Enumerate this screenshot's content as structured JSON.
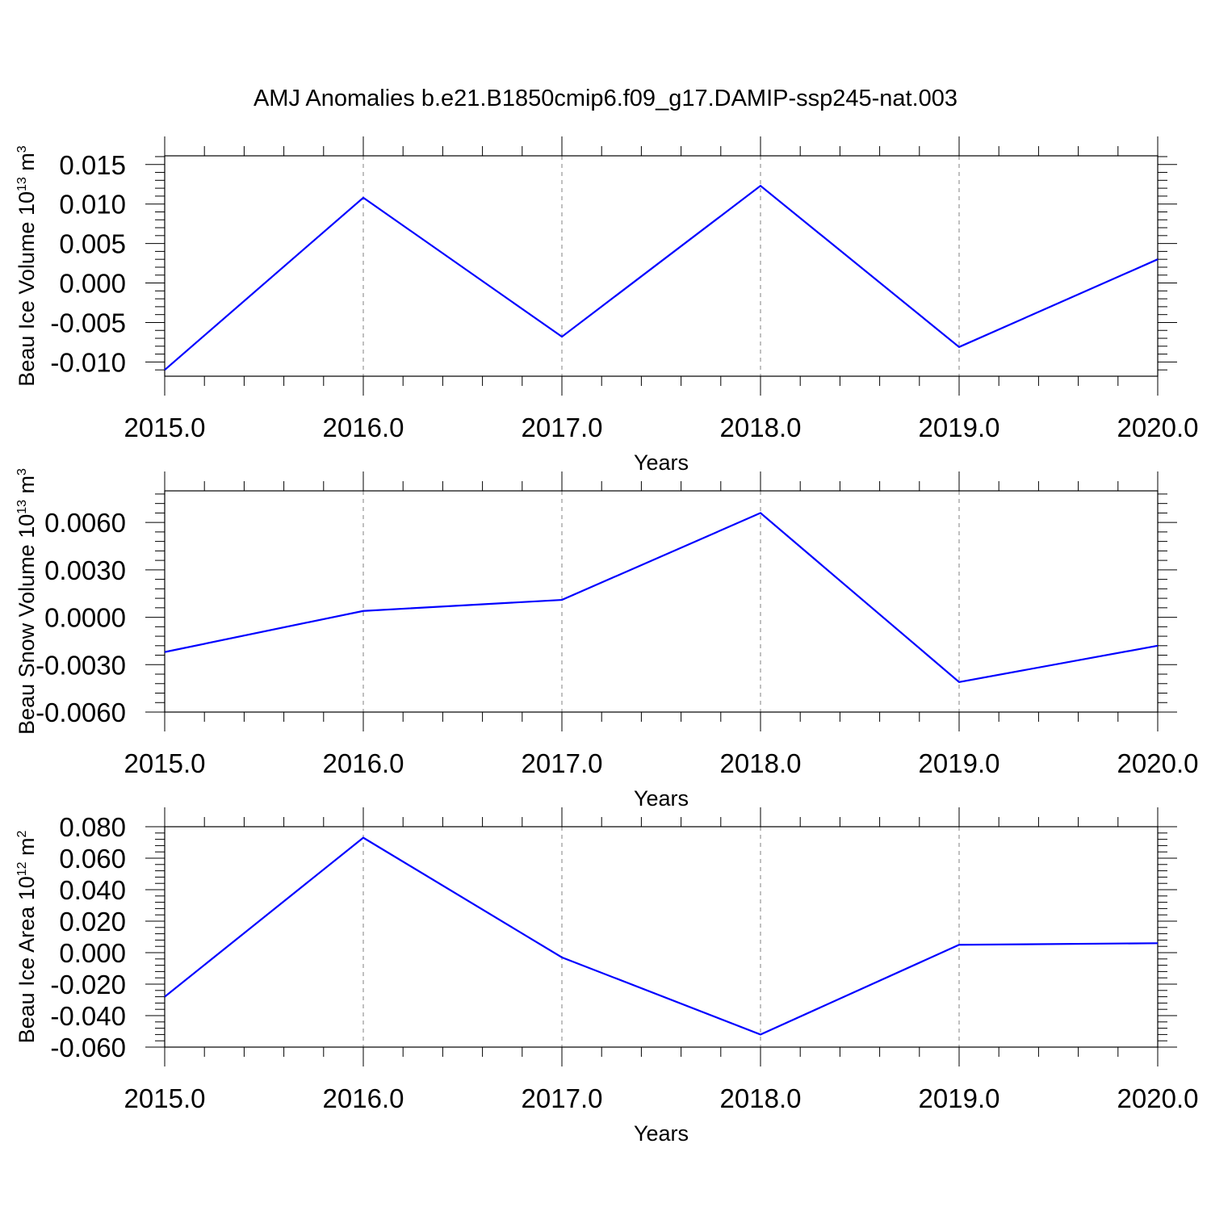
{
  "title": "AMJ Anomalies b.e21.B1850cmip6.f09_g17.DAMIP-ssp245-nat.003",
  "colors": {
    "line": "#0000ff",
    "frame": "#000000",
    "grid": "#808080"
  },
  "chart_data": [
    {
      "type": "line",
      "xlabel": "Years",
      "ylabel": {
        "text": "Beau Ice Volume 10",
        "exp": "13",
        "unit": " m",
        "unit_exp": "3"
      },
      "x": [
        2015,
        2016,
        2017,
        2018,
        2019,
        2020
      ],
      "y": [
        -0.011,
        0.0108,
        -0.0068,
        0.0123,
        -0.0081,
        0.003
      ],
      "xlim": [
        2015,
        2020
      ],
      "ylim": [
        -0.0118,
        0.0161
      ],
      "xticks": [
        2015,
        2016,
        2017,
        2018,
        2019,
        2020
      ],
      "xtick_labels": [
        "2015.0",
        "2016.0",
        "2017.0",
        "2018.0",
        "2019.0",
        "2020.0"
      ],
      "yticks": [
        -0.01,
        -0.005,
        0.0,
        0.005,
        0.01,
        0.015
      ],
      "ytick_labels": [
        "-0.010",
        "-0.005",
        "0.000",
        "0.005",
        "0.010",
        "0.015"
      ],
      "grid": "vertical-dashed"
    },
    {
      "type": "line",
      "xlabel": "Years",
      "ylabel": {
        "text": "Beau Snow Volume 10",
        "exp": "13",
        "unit": " m",
        "unit_exp": "3"
      },
      "x": [
        2015,
        2016,
        2017,
        2018,
        2019,
        2020
      ],
      "y": [
        -0.0022,
        0.0004,
        0.0011,
        0.0066,
        -0.0041,
        -0.0018
      ],
      "xlim": [
        2015,
        2020
      ],
      "ylim": [
        -0.006,
        0.008
      ],
      "xticks": [
        2015,
        2016,
        2017,
        2018,
        2019,
        2020
      ],
      "xtick_labels": [
        "2015.0",
        "2016.0",
        "2017.0",
        "2018.0",
        "2019.0",
        "2020.0"
      ],
      "yticks": [
        -0.006,
        -0.003,
        0.0,
        0.003,
        0.006
      ],
      "ytick_labels": [
        "-0.0060",
        "-0.0030",
        "0.0000",
        "0.0030",
        "0.0060"
      ],
      "grid": "vertical-dashed"
    },
    {
      "type": "line",
      "xlabel": "Years",
      "ylabel": {
        "text": "Beau Ice Area 10",
        "exp": "12",
        "unit": " m",
        "unit_exp": "2"
      },
      "x": [
        2015,
        2016,
        2017,
        2018,
        2019,
        2020
      ],
      "y": [
        -0.028,
        0.073,
        -0.003,
        -0.052,
        0.005,
        0.006
      ],
      "xlim": [
        2015,
        2020
      ],
      "ylim": [
        -0.06,
        0.08
      ],
      "xticks": [
        2015,
        2016,
        2017,
        2018,
        2019,
        2020
      ],
      "xtick_labels": [
        "2015.0",
        "2016.0",
        "2017.0",
        "2018.0",
        "2019.0",
        "2020.0"
      ],
      "yticks": [
        -0.06,
        -0.04,
        -0.02,
        0.0,
        0.02,
        0.04,
        0.06,
        0.08
      ],
      "ytick_labels": [
        "-0.060",
        "-0.040",
        "-0.020",
        "0.000",
        "0.020",
        "0.040",
        "0.060",
        "0.080"
      ],
      "grid": "vertical-dashed"
    }
  ]
}
